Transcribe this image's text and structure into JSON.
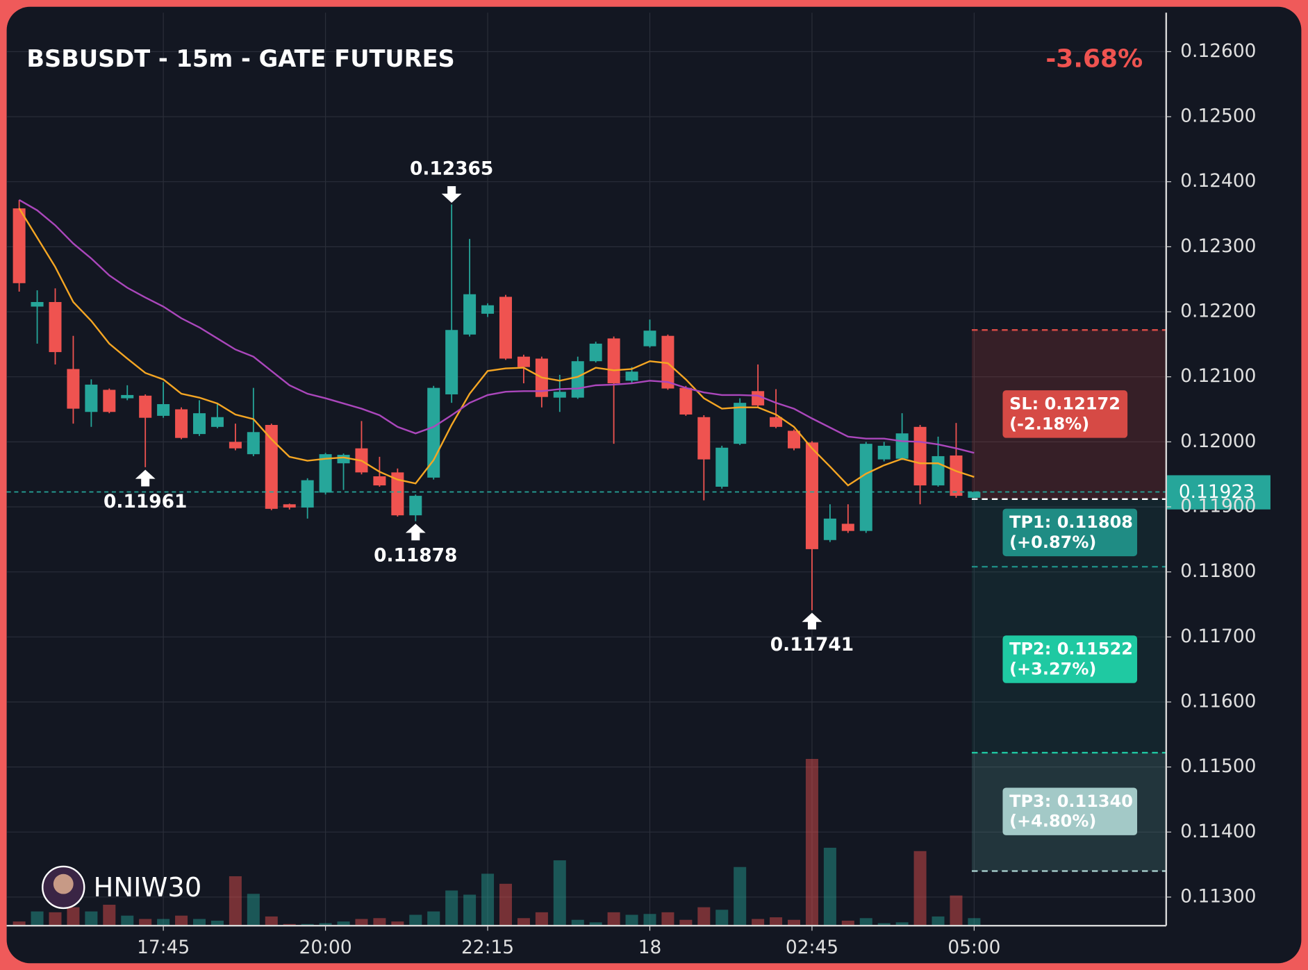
{
  "chart_data": {
    "type": "candlestick",
    "title": "BSBUSDT - 15m - GATE FUTURES",
    "change": "-3.68%",
    "watermark": "HNIW30",
    "categories": [
      null,
      null,
      null,
      null,
      null,
      null,
      null,
      null,
      "17:45",
      null,
      null,
      null,
      null,
      null,
      null,
      null,
      null,
      "20:00",
      null,
      null,
      null,
      null,
      null,
      null,
      null,
      null,
      "22:15",
      null,
      null,
      null,
      null,
      null,
      null,
      null,
      null,
      "18",
      null,
      null,
      null,
      null,
      null,
      null,
      null,
      null,
      "02:45",
      null,
      null,
      null,
      null,
      null,
      null,
      null,
      null,
      "05:00"
    ],
    "open": [
      0.12359,
      0.12208,
      0.12215,
      0.12112,
      0.12046,
      0.1208,
      0.12067,
      0.12071,
      0.1204,
      0.1205,
      0.12012,
      0.12023,
      0.12,
      0.11981,
      0.12026,
      0.11904,
      0.11899,
      0.11922,
      0.11967,
      0.1199,
      0.11947,
      0.11953,
      0.11887,
      0.11945,
      0.12073,
      0.12165,
      0.12197,
      0.12223,
      0.12131,
      0.12128,
      0.12068,
      0.12068,
      0.12124,
      0.12159,
      0.12094,
      0.12147,
      0.12163,
      0.12083,
      0.12038,
      0.11931,
      0.11997,
      0.12078,
      0.12038,
      0.12017,
      0.11999,
      0.11849,
      0.11874,
      0.11863,
      0.11973,
      0.11974,
      0.12023,
      0.11933,
      0.11979,
      0.11914
    ],
    "high": [
      0.12372,
      0.12233,
      0.12236,
      0.12163,
      0.12096,
      0.12082,
      0.12087,
      0.12073,
      0.12092,
      0.12053,
      0.12064,
      0.12058,
      0.12028,
      0.12083,
      0.12028,
      0.11905,
      0.11944,
      0.11983,
      0.11982,
      0.12032,
      0.11977,
      0.11959,
      0.11919,
      0.12086,
      0.12365,
      0.12312,
      0.12213,
      0.12226,
      0.12134,
      0.12131,
      0.12103,
      0.12131,
      0.12154,
      0.12162,
      0.12115,
      0.12188,
      0.12165,
      0.12086,
      0.12041,
      0.11994,
      0.12067,
      0.12119,
      0.12081,
      0.12019,
      0.12001,
      0.11904,
      0.11904,
      0.12,
      0.12,
      0.12044,
      0.12026,
      0.12008,
      0.12029,
      0.11924
    ],
    "low": [
      0.12231,
      0.12151,
      0.12119,
      0.12028,
      0.12023,
      0.12044,
      0.12064,
      0.11961,
      0.12037,
      0.12004,
      0.12009,
      0.12021,
      0.11987,
      0.11978,
      0.11895,
      0.11896,
      0.11882,
      0.11919,
      0.11926,
      0.1195,
      0.11931,
      0.11885,
      0.11878,
      0.11942,
      0.1206,
      0.12162,
      0.12192,
      0.12126,
      0.1209,
      0.12053,
      0.12046,
      0.12066,
      0.12122,
      0.11997,
      0.12091,
      0.12145,
      0.1208,
      0.1204,
      0.1191,
      0.11928,
      0.11995,
      0.12054,
      0.12021,
      0.11987,
      0.11741,
      0.11846,
      0.1186,
      0.1186,
      0.1197,
      0.11972,
      0.11904,
      0.11931,
      0.11914,
      0.11913
    ],
    "close": [
      0.12244,
      0.12215,
      0.12138,
      0.12051,
      0.12088,
      0.12046,
      0.12072,
      0.12037,
      0.12058,
      0.12006,
      0.12044,
      0.12038,
      0.1199,
      0.12015,
      0.11897,
      0.11899,
      0.11941,
      0.11981,
      0.1198,
      0.11953,
      0.11933,
      0.11887,
      0.11917,
      0.12083,
      0.12172,
      0.12227,
      0.1221,
      0.12128,
      0.12115,
      0.12069,
      0.12077,
      0.12124,
      0.12151,
      0.1209,
      0.12108,
      0.12171,
      0.12082,
      0.12042,
      0.11973,
      0.11991,
      0.1206,
      0.12056,
      0.12023,
      0.1199,
      0.11835,
      0.11882,
      0.11863,
      0.11997,
      0.11994,
      0.12013,
      0.11933,
      0.11978,
      0.11917,
      0.11923
    ],
    "volume": [
      5,
      17,
      16,
      22,
      17,
      25,
      12,
      8,
      8,
      12,
      8,
      6,
      59,
      38,
      11,
      2,
      2,
      3,
      5,
      8,
      9,
      5,
      13,
      17,
      42,
      37,
      62,
      50,
      9,
      16,
      78,
      7,
      4,
      16,
      13,
      14,
      16,
      7,
      22,
      19,
      70,
      8,
      10,
      7,
      199,
      93,
      6,
      9,
      3,
      4,
      89,
      11,
      36,
      9
    ],
    "up_color": "#26a69a",
    "down_color": "#ef5350",
    "series": [
      {
        "color": "#f5a623",
        "values": [
          0.12359,
          0.12314,
          0.12269,
          0.12215,
          0.12186,
          0.12151,
          0.12128,
          0.12106,
          0.12096,
          0.12074,
          0.12068,
          0.12059,
          0.12042,
          0.12035,
          0.12004,
          0.11977,
          0.11971,
          0.11974,
          0.11976,
          0.11971,
          0.11954,
          0.11942,
          0.11936,
          0.11972,
          0.12026,
          0.12074,
          0.12109,
          0.12113,
          0.12114,
          0.12099,
          0.12094,
          0.121,
          0.12114,
          0.1211,
          0.12112,
          0.12124,
          0.12121,
          0.12096,
          0.12067,
          0.12051,
          0.12053,
          0.12053,
          0.12042,
          0.12023,
          0.1199,
          0.11962,
          0.11933,
          0.11951,
          0.11964,
          0.11974,
          0.11967,
          0.11967,
          0.11955,
          0.11946
        ]
      },
      {
        "color": "#ab47bc",
        "values": [
          0.12372,
          0.12356,
          0.12333,
          0.12305,
          0.12282,
          0.12256,
          0.12237,
          0.12222,
          0.12208,
          0.1219,
          0.12176,
          0.12159,
          0.12142,
          0.12131,
          0.12109,
          0.12087,
          0.12074,
          0.12067,
          0.12059,
          0.12051,
          0.12041,
          0.12023,
          0.12013,
          0.12023,
          0.12041,
          0.1206,
          0.12072,
          0.12077,
          0.12078,
          0.12078,
          0.12081,
          0.12082,
          0.12087,
          0.12088,
          0.1209,
          0.12094,
          0.12092,
          0.12083,
          0.12076,
          0.12072,
          0.12072,
          0.12071,
          0.1206,
          0.12051,
          0.12036,
          0.12022,
          0.12008,
          0.12005,
          0.12005,
          0.12001,
          0.12,
          0.11996,
          0.1199,
          0.11983
        ]
      }
    ],
    "annotations": [
      {
        "label": "0.12365",
        "value": 0.12365
      },
      {
        "label": "0.11961",
        "value": 0.11961
      },
      {
        "label": "0.11878",
        "value": 0.11878
      },
      {
        "label": "0.11741",
        "value": 0.11741
      }
    ],
    "current_price": {
      "label": "0.11923",
      "value": 0.11923
    },
    "entry": 0.11912,
    "levels": [
      {
        "label": "SL: 0.12172",
        "change_label": "(-2.18%)",
        "value": 0.12172,
        "color": "#d64a45"
      },
      {
        "label": "TP1: 0.11808",
        "change_label": "(+0.87%)",
        "value": 0.11808,
        "color": "#1f8c84"
      },
      {
        "label": "TP2: 0.11522",
        "change_label": "(+3.27%)",
        "value": 0.11522,
        "color": "#1fc9a2"
      },
      {
        "label": "TP3: 0.11340",
        "change_label": "(+4.80%)",
        "value": 0.1134,
        "color": "#a3c9c7"
      }
    ],
    "ylim": [
      0.11256,
      0.1266
    ],
    "yticks": [
      {
        "value": 0.126,
        "label": "0.12600"
      },
      {
        "value": 0.125,
        "label": "0.12500"
      },
      {
        "value": 0.124,
        "label": "0.12400"
      },
      {
        "value": 0.123,
        "label": "0.12300"
      },
      {
        "value": 0.122,
        "label": "0.12200"
      },
      {
        "value": 0.121,
        "label": "0.12100"
      },
      {
        "value": 0.12,
        "label": "0.12000"
      },
      {
        "value": 0.119,
        "label": "0.11900"
      },
      {
        "value": 0.118,
        "label": "0.11800"
      },
      {
        "value": 0.117,
        "label": "0.11700"
      },
      {
        "value": 0.116,
        "label": "0.11600"
      },
      {
        "value": 0.115,
        "label": "0.11500"
      },
      {
        "value": 0.114,
        "label": "0.11400"
      },
      {
        "value": 0.113,
        "label": "0.11300"
      }
    ],
    "grid": true
  }
}
